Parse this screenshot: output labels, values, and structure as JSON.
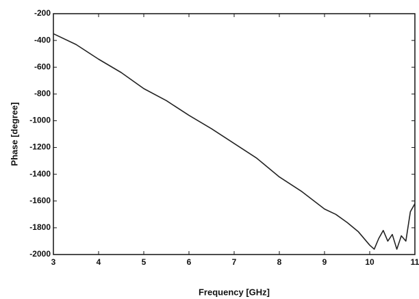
{
  "chart_data": {
    "type": "line",
    "x_label": "Frequency [GHz]",
    "y_label": "Phase [degree]",
    "x": [
      3,
      3.5,
      4,
      4.5,
      5,
      5.5,
      6,
      6.5,
      7,
      7.5,
      8,
      8.5,
      9,
      9.25,
      9.5,
      9.75,
      10,
      10.1,
      10.2,
      10.3,
      10.4,
      10.5,
      10.6,
      10.7,
      10.8,
      10.9,
      11
    ],
    "series": [
      {
        "color": "#222222",
        "values": [
          -350,
          -430,
          -540,
          -640,
          -760,
          -850,
          -960,
          -1060,
          -1170,
          -1280,
          -1420,
          -1530,
          -1660,
          -1700,
          -1760,
          -1830,
          -1930,
          -1960,
          -1880,
          -1820,
          -1900,
          -1850,
          -1960,
          -1860,
          -1900,
          -1680,
          -1620
        ]
      }
    ],
    "xlim": [
      3,
      11
    ],
    "xticks": [
      3,
      4,
      5,
      6,
      7,
      8,
      9,
      10,
      11
    ],
    "ylim": [
      -2000,
      -200
    ],
    "yticks": [
      -2000,
      -1800,
      -1600,
      -1400,
      -1200,
      -1000,
      -800,
      -600,
      -400,
      -200
    ],
    "grid": false
  }
}
